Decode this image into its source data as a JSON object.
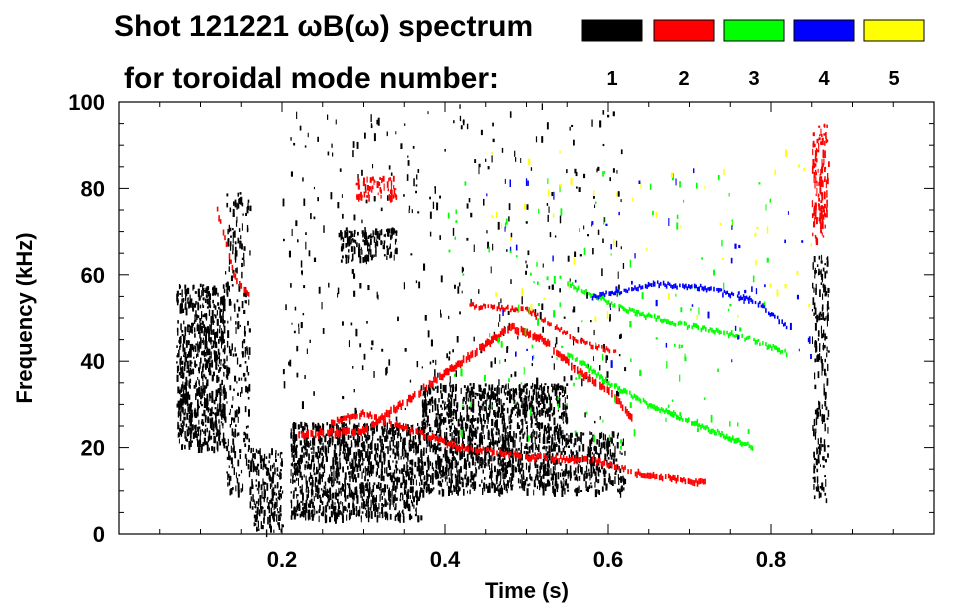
{
  "chart_data": {
    "type": "spectrogram",
    "title_line1": "Shot 121221 ωB(ω) spectrum",
    "title_line2": "for toroidal mode number:",
    "xlabel": "Time (s)",
    "ylabel": "Frequency (kHz)",
    "xlim": [
      0.0,
      1.0
    ],
    "ylim": [
      0,
      100
    ],
    "x_ticks": [
      0.2,
      0.4,
      0.6,
      0.8
    ],
    "x_tick_labels": [
      "0.2",
      "0.4",
      "0.6",
      "0.8"
    ],
    "y_ticks": [
      0,
      20,
      40,
      60,
      80,
      100
    ],
    "y_tick_labels": [
      "0",
      "20",
      "40",
      "60",
      "80",
      "100"
    ],
    "legend": [
      {
        "n": "1",
        "color": "#000000"
      },
      {
        "n": "2",
        "color": "#ff0000"
      },
      {
        "n": "3",
        "color": "#00ff00"
      },
      {
        "n": "4",
        "color": "#0000ff"
      },
      {
        "n": "5",
        "color": "#ffff00"
      }
    ],
    "features": [
      {
        "mode": "1",
        "kind": "blob",
        "t": [
          0.07,
          0.13
        ],
        "f": [
          20,
          58
        ],
        "density": 1.0
      },
      {
        "mode": "1",
        "kind": "blob",
        "t": [
          0.13,
          0.16
        ],
        "f": [
          10,
          80
        ],
        "density": 0.35
      },
      {
        "mode": "1",
        "kind": "blob",
        "t": [
          0.16,
          0.2
        ],
        "f": [
          1,
          20
        ],
        "density": 0.8
      },
      {
        "mode": "1",
        "kind": "blob",
        "t": [
          0.21,
          0.37
        ],
        "f": [
          4,
          26
        ],
        "density": 1.0
      },
      {
        "mode": "1",
        "kind": "blob",
        "t": [
          0.37,
          0.55
        ],
        "f": [
          10,
          35
        ],
        "density": 1.0
      },
      {
        "mode": "1",
        "kind": "blob",
        "t": [
          0.55,
          0.62
        ],
        "f": [
          10,
          24
        ],
        "density": 0.7
      },
      {
        "mode": "1",
        "kind": "blob",
        "t": [
          0.27,
          0.34
        ],
        "f": [
          64,
          71
        ],
        "density": 0.9
      },
      {
        "mode": "1",
        "kind": "blob",
        "t": [
          0.85,
          0.87
        ],
        "f": [
          8,
          65
        ],
        "density": 0.5
      },
      {
        "mode": "1",
        "kind": "speckle",
        "t": [
          0.2,
          0.62
        ],
        "f": [
          25,
          100
        ],
        "density": 0.12
      },
      {
        "mode": "2",
        "kind": "chirp",
        "points": [
          [
            0.22,
            23
          ],
          [
            0.3,
            24
          ],
          [
            0.36,
            32
          ],
          [
            0.42,
            40
          ],
          [
            0.48,
            48
          ],
          [
            0.52,
            45
          ],
          [
            0.56,
            38
          ],
          [
            0.6,
            33
          ],
          [
            0.63,
            27
          ]
        ],
        "width": 2
      },
      {
        "mode": "2",
        "kind": "chirp",
        "points": [
          [
            0.26,
            26
          ],
          [
            0.3,
            28
          ],
          [
            0.36,
            24
          ],
          [
            0.42,
            20
          ],
          [
            0.5,
            18
          ],
          [
            0.58,
            17
          ],
          [
            0.64,
            14
          ],
          [
            0.72,
            12
          ]
        ],
        "width": 1.5
      },
      {
        "mode": "2",
        "kind": "blob",
        "t": [
          0.29,
          0.34
        ],
        "f": [
          78,
          83
        ],
        "density": 0.8
      },
      {
        "mode": "2",
        "kind": "blob",
        "t": [
          0.85,
          0.87
        ],
        "f": [
          68,
          95
        ],
        "density": 0.8
      },
      {
        "mode": "2",
        "kind": "chirp",
        "points": [
          [
            0.12,
            75
          ],
          [
            0.14,
            60
          ],
          [
            0.16,
            55
          ]
        ],
        "width": 1.5
      },
      {
        "mode": "2",
        "kind": "chirp",
        "points": [
          [
            0.43,
            53
          ],
          [
            0.5,
            52
          ],
          [
            0.56,
            45
          ],
          [
            0.61,
            42
          ]
        ],
        "width": 1
      },
      {
        "mode": "3",
        "kind": "chirp",
        "points": [
          [
            0.55,
            58
          ],
          [
            0.62,
            52
          ],
          [
            0.68,
            49
          ],
          [
            0.76,
            46
          ],
          [
            0.82,
            42
          ]
        ],
        "width": 1
      },
      {
        "mode": "3",
        "kind": "chirp",
        "points": [
          [
            0.55,
            42
          ],
          [
            0.6,
            35
          ],
          [
            0.65,
            30
          ],
          [
            0.7,
            26
          ],
          [
            0.78,
            20
          ]
        ],
        "width": 1.2
      },
      {
        "mode": "3",
        "kind": "speckle",
        "t": [
          0.4,
          0.8
        ],
        "f": [
          20,
          85
        ],
        "density": 0.05
      },
      {
        "mode": "4",
        "kind": "chirp",
        "points": [
          [
            0.58,
            55
          ],
          [
            0.66,
            58
          ],
          [
            0.72,
            57
          ],
          [
            0.78,
            54
          ],
          [
            0.82,
            48
          ]
        ],
        "width": 1
      },
      {
        "mode": "4",
        "kind": "speckle",
        "t": [
          0.45,
          0.85
        ],
        "f": [
          40,
          85
        ],
        "density": 0.03
      },
      {
        "mode": "5",
        "kind": "speckle",
        "t": [
          0.45,
          0.85
        ],
        "f": [
          50,
          90
        ],
        "density": 0.03
      }
    ]
  }
}
